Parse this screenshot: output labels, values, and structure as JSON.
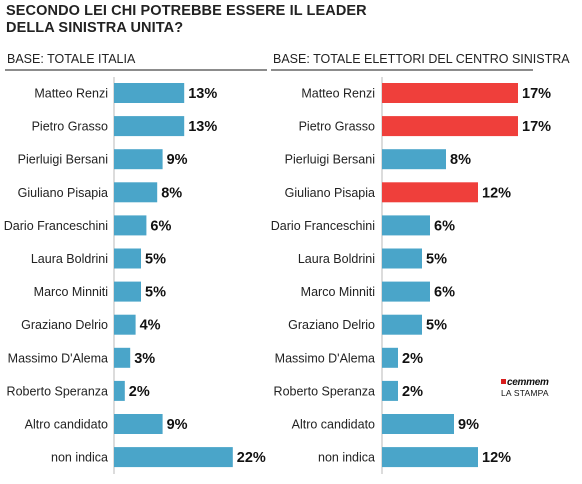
{
  "title": {
    "line1": "SECONDO LEI CHI POTREBBE ESSERE IL LEADER",
    "line2": "DELLA SINISTRA UNITA?"
  },
  "colors": {
    "bar": "#4aa5c9",
    "highlight": "#ef3f3b",
    "rule": "#8c8c8c"
  },
  "source": {
    "logo": "cemmem",
    "paper": "LA STAMPA"
  },
  "chart_data": [
    {
      "type": "bar",
      "orientation": "horizontal",
      "title": "BASE: TOTALE ITALIA",
      "categories": [
        "Matteo Renzi",
        "Pietro Grasso",
        "Pierluigi Bersani",
        "Giuliano Pisapia",
        "Dario Franceschini",
        "Laura Boldrini",
        "Marco Minniti",
        "Graziano Delrio",
        "Massimo D'Alema",
        "Roberto Speranza",
        "Altro candidato",
        "non indica"
      ],
      "values": [
        13,
        13,
        9,
        8,
        6,
        5,
        5,
        4,
        3,
        2,
        9,
        22
      ],
      "value_labels": [
        "13%",
        "13%",
        "9%",
        "8%",
        "6%",
        "5%",
        "5%",
        "4%",
        "3%",
        "2%",
        "9%",
        "22%"
      ],
      "highlight": [],
      "unit": "%"
    },
    {
      "type": "bar",
      "orientation": "horizontal",
      "title": "BASE: TOTALE ELETTORI DEL CENTRO SINISTRA",
      "categories": [
        "Matteo Renzi",
        "Pietro Grasso",
        "Pierluigi Bersani",
        "Giuliano Pisapia",
        "Dario Franceschini",
        "Laura Boldrini",
        "Marco Minniti",
        "Graziano Delrio",
        "Massimo D'Alema",
        "Roberto Speranza",
        "Altro candidato",
        "non indica"
      ],
      "values": [
        17,
        17,
        8,
        12,
        6,
        5,
        6,
        5,
        2,
        2,
        9,
        12
      ],
      "value_labels": [
        "17%",
        "17%",
        "8%",
        "12%",
        "6%",
        "5%",
        "6%",
        "5%",
        "2%",
        "2%",
        "9%",
        "12%"
      ],
      "highlight": [
        "Matteo Renzi",
        "Pietro Grasso",
        "Giuliano Pisapia"
      ],
      "unit": "%"
    }
  ]
}
